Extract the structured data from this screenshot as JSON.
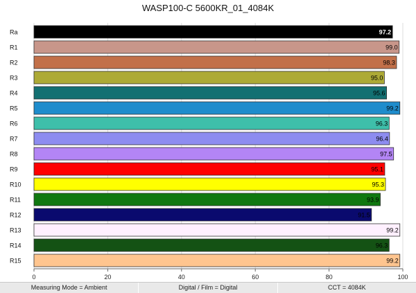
{
  "chart_data": {
    "type": "bar",
    "orientation": "horizontal",
    "title": "WASP100-C 5600KR_01_4084K",
    "categories": [
      "Ra",
      "R1",
      "R2",
      "R3",
      "R4",
      "R5",
      "R6",
      "R7",
      "R8",
      "R9",
      "R10",
      "R11",
      "R12",
      "R13",
      "R14",
      "R15"
    ],
    "values": [
      97.2,
      99.0,
      98.3,
      95.0,
      95.6,
      99.2,
      96.3,
      96.4,
      97.5,
      95.1,
      95.3,
      93.9,
      91.5,
      99.2,
      96.3,
      99.2
    ],
    "value_labels": [
      "97.2",
      "99.0",
      "98.3",
      "95.0",
      "95.6",
      "99.2",
      "96.3",
      "96.4",
      "97.5",
      "95.1",
      "95.3",
      "93.9",
      "91.5",
      "99.2",
      "96.3",
      "99.2"
    ],
    "colors": [
      "#000000",
      "#c8968a",
      "#c27049",
      "#adaa36",
      "#137072",
      "#1e8ccc",
      "#3ebfaa",
      "#8d8cf0",
      "#b385f5",
      "#ff0000",
      "#ffff00",
      "#107810",
      "#0a0a6e",
      "#fff0ff",
      "#145214",
      "#ffc58f"
    ],
    "label_colors": [
      "#ffffff",
      "#000000",
      "#000000",
      "#000000",
      "#000000",
      "#000000",
      "#000000",
      "#000000",
      "#000000",
      "#000000",
      "#000000",
      "#000000",
      "#000000",
      "#000000",
      "#000000",
      "#000000"
    ],
    "xlim": [
      0,
      100
    ],
    "xticks": [
      "0",
      "20",
      "40",
      "60",
      "80",
      "100"
    ],
    "xgrid": true,
    "legend": "none"
  },
  "footer": {
    "measuring_mode": "Measuring Mode = Ambient",
    "digital_film": "Digital / Film = Digital",
    "cct": "CCT = 4084K"
  }
}
